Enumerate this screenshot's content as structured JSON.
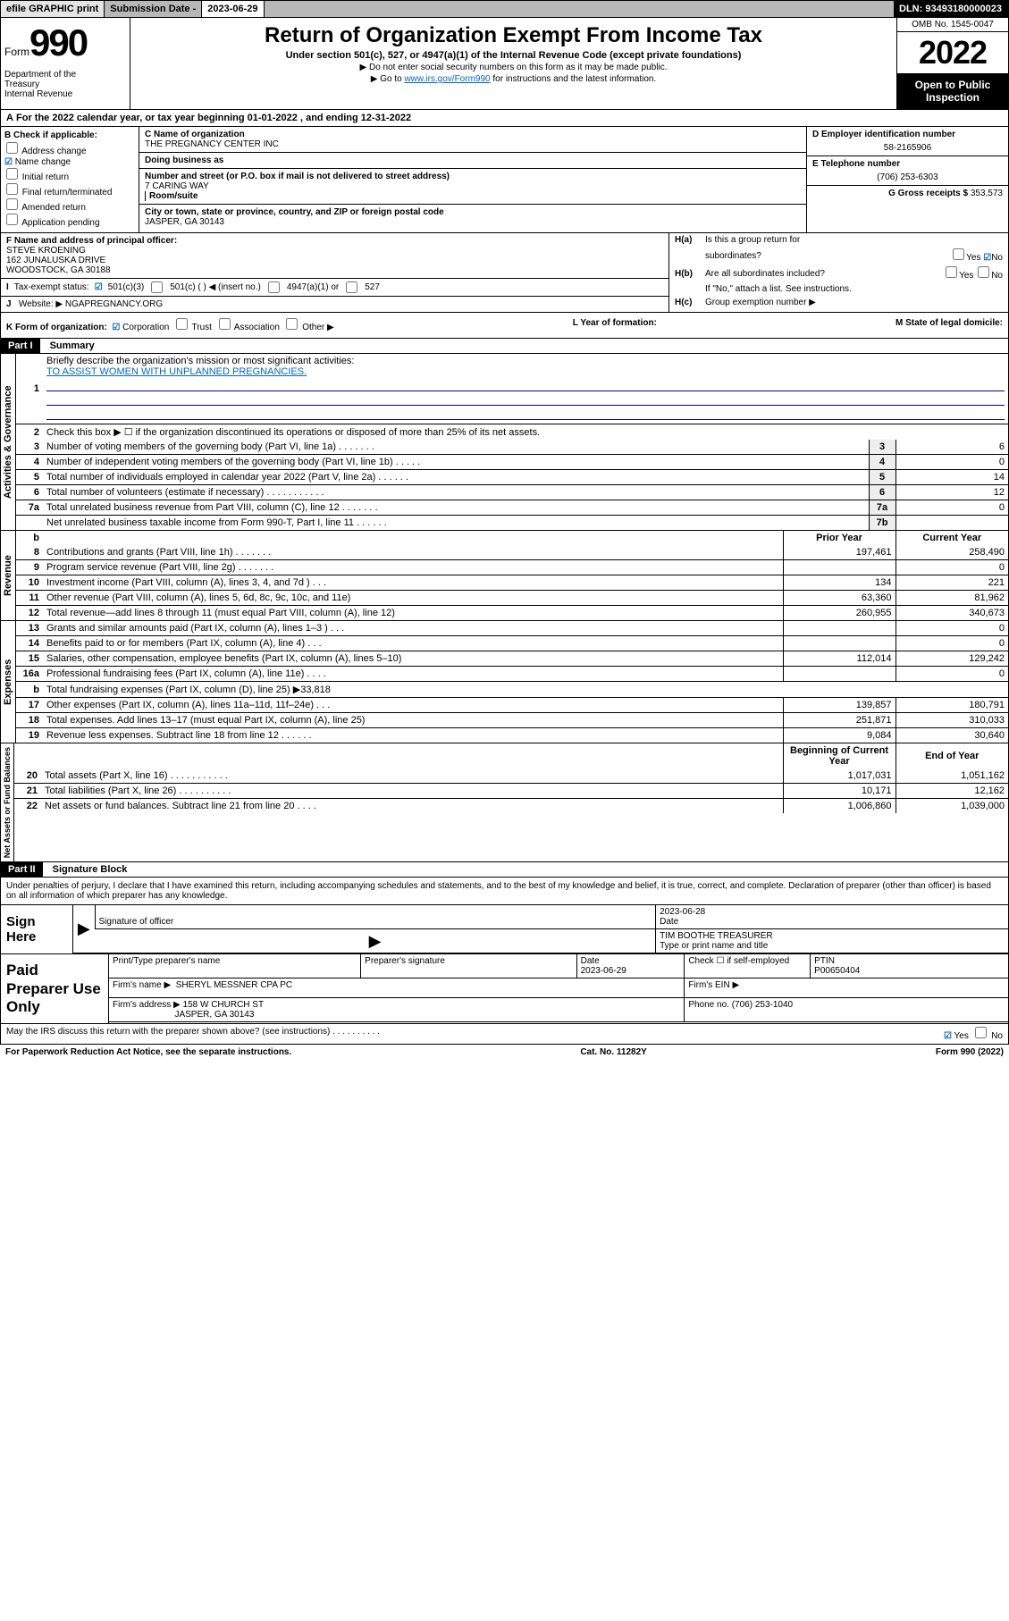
{
  "header": {
    "efile_btn": "efile GRAPHIC print",
    "sub_label": "Submission Date - ",
    "sub_date": "2023-06-29",
    "dln_label": "DLN: ",
    "dln": "93493180000023"
  },
  "title": {
    "form_word": "Form",
    "form_num": "990",
    "dept": "Department of the Treasury\nInternal Revenue Service",
    "main": "Return of Organization Exempt From Income Tax",
    "sub": "Under section 501(c), 527, or 4947(a)(1) of the Internal Revenue Code (except private foundations)",
    "note1": "▶ Do not enter social security numbers on this form as it may be made public.",
    "note2_pre": "▶ Go to ",
    "note2_link": "www.irs.gov/Form990",
    "note2_post": " for instructions and the latest information.",
    "omb": "OMB No. 1545-0047",
    "year": "2022",
    "open": "Open to Public Inspection"
  },
  "row_a": {
    "label": "A",
    "text_pre": "For the 2022 calendar year, or tax year beginning ",
    "begin": "01-01-2022",
    "mid": " , and ending ",
    "end": "12-31-2022"
  },
  "box_b": {
    "hdr": "B Check if applicable:",
    "items": [
      "Address change",
      "Name change",
      "Initial return",
      "Final return/terminated",
      "Amended return",
      "Application pending"
    ],
    "checked": [
      false,
      true,
      false,
      false,
      false,
      false
    ]
  },
  "box_c": {
    "name_lbl": "C Name of organization",
    "name": "THE PREGNANCY CENTER INC",
    "dba_lbl": "Doing business as",
    "addr_lbl": "Number and street (or P.O. box if mail is not delivered to street address)",
    "room_lbl": "Room/suite",
    "addr": "7 CARING WAY",
    "city_lbl": "City or town, state or province, country, and ZIP or foreign postal code",
    "city": "JASPER, GA  30143"
  },
  "box_d": {
    "lbl": "D Employer identification number",
    "val": "58-2165906"
  },
  "box_e": {
    "lbl": "E Telephone number",
    "val": "(706) 253-6303"
  },
  "box_g": {
    "lbl": "G Gross receipts $ ",
    "val": "353,573"
  },
  "box_f": {
    "lbl": "F Name and address of principal officer:",
    "name": "STEVE KROENING",
    "addr1": "162 JUNALUSKA DRIVE",
    "addr2": "WOODSTOCK, GA  30188"
  },
  "box_h": {
    "a_lbl": "Is this a group return for",
    "a_lbl2": "subordinates?",
    "b_lbl": "Are all subordinates included?",
    "note": "If \"No,\" attach a list. See instructions.",
    "c_lbl": "Group exemption number ▶",
    "yes": "Yes",
    "no": "No"
  },
  "box_i": {
    "lbl": "Tax-exempt status:",
    "opts": [
      "501(c)(3)",
      "501(c) (  ) ◀ (insert no.)",
      "4947(a)(1) or",
      "527"
    ]
  },
  "box_j": {
    "lbl": "Website: ▶",
    "val": "NGAPREGNANCY.ORG"
  },
  "box_k": {
    "lbl": "K Form of organization:",
    "opts": [
      "Corporation",
      "Trust",
      "Association",
      "Other ▶"
    ],
    "l_lbl": "L Year of formation:",
    "m_lbl": "M State of legal domicile:"
  },
  "part1": {
    "hdr": "Part I",
    "title": "Summary",
    "q1_lbl": "1",
    "q1": "Briefly describe the organization's mission or most significant activities:",
    "q1_val": "TO ASSIST WOMEN WITH UNPLANNED PREGNANCIES.",
    "q2_lbl": "2",
    "q2": "Check this box ▶ ☐ if the organization discontinued its operations or disposed of more than 25% of its net assets.",
    "vlabels": [
      "Activities & Governance",
      "Revenue",
      "Expenses",
      "Net Assets or Fund Balances"
    ],
    "prior_hdr": "Prior Year",
    "curr_hdr": "Current Year",
    "begin_hdr": "Beginning of Current Year",
    "end_hdr": "End of Year",
    "gov_rows": [
      {
        "n": "3",
        "d": "Number of voting members of the governing body (Part VI, line 1a)  .   .    .    .   .   .   .",
        "k": "3",
        "v": "6"
      },
      {
        "n": "4",
        "d": "Number of independent voting members of the governing body (Part VI, line 1b)  .   .   .   .   .",
        "k": "4",
        "v": "0"
      },
      {
        "n": "5",
        "d": "Total number of individuals employed in calendar year 2022 (Part V, line 2a)  .   .   .   .   .   .",
        "k": "5",
        "v": "14"
      },
      {
        "n": "6",
        "d": "Total number of volunteers (estimate if necessary)  .   .   .   .   .   .   .   .   .   .   .",
        "k": "6",
        "v": "12"
      },
      {
        "n": "7a",
        "d": "Total unrelated business revenue from Part VIII, column (C), line 12  .   .   .   .   .   .   .",
        "k": "7a",
        "v": "0"
      },
      {
        "n": "",
        "d": "Net unrelated business taxable income from Form 990-T, Part I, line 11  .   .   .   .   .   .",
        "k": "7b",
        "v": ""
      }
    ],
    "rev_rows": [
      {
        "n": "8",
        "d": "Contributions and grants (Part VIII, line 1h)  .   .   .   .   .   .   .",
        "p": "197,461",
        "c": "258,490"
      },
      {
        "n": "9",
        "d": "Program service revenue (Part VIII, line 2g)  .   .   .   .   .   .   .",
        "p": "",
        "c": "0"
      },
      {
        "n": "10",
        "d": "Investment income (Part VIII, column (A), lines 3, 4, and 7d )  .   .   .",
        "p": "134",
        "c": "221"
      },
      {
        "n": "11",
        "d": "Other revenue (Part VIII, column (A), lines 5, 6d, 8c, 9c, 10c, and 11e)",
        "p": "63,360",
        "c": "81,962"
      },
      {
        "n": "12",
        "d": "Total revenue—add lines 8 through 11 (must equal Part VIII, column (A), line 12)",
        "p": "260,955",
        "c": "340,673"
      }
    ],
    "exp_rows": [
      {
        "n": "13",
        "d": "Grants and similar amounts paid (Part IX, column (A), lines 1–3 )  .   .   .",
        "p": "",
        "c": "0"
      },
      {
        "n": "14",
        "d": "Benefits paid to or for members (Part IX, column (A), line 4)  .   .   .",
        "p": "",
        "c": "0"
      },
      {
        "n": "15",
        "d": "Salaries, other compensation, employee benefits (Part IX, column (A), lines 5–10)",
        "p": "112,014",
        "c": "129,242"
      },
      {
        "n": "16a",
        "d": "Professional fundraising fees (Part IX, column (A), line 11e)  .   .   .   .",
        "p": "",
        "c": "0"
      },
      {
        "n": "b",
        "d": "Total fundraising expenses (Part IX, column (D), line 25) ▶33,818",
        "p": "@span",
        "c": ""
      },
      {
        "n": "17",
        "d": "Other expenses (Part IX, column (A), lines 11a–11d, 11f–24e)  .   .   .",
        "p": "139,857",
        "c": "180,791"
      },
      {
        "n": "18",
        "d": "Total expenses. Add lines 13–17 (must equal Part IX, column (A), line 25)",
        "p": "251,871",
        "c": "310,033"
      },
      {
        "n": "19",
        "d": "Revenue less expenses. Subtract line 18 from line 12  .   .   .   .   .   .",
        "p": "9,084",
        "c": "30,640"
      }
    ],
    "net_rows": [
      {
        "n": "20",
        "d": "Total assets (Part X, line 16)  .   .   .   .   .   .   .   .   .   .   .",
        "p": "1,017,031",
        "c": "1,051,162"
      },
      {
        "n": "21",
        "d": "Total liabilities (Part X, line 26)  .   .   .   .   .   .   .   .   .   .",
        "p": "10,171",
        "c": "12,162"
      },
      {
        "n": "22",
        "d": "Net assets or fund balances. Subtract line 21 from line 20  .   .   .   .",
        "p": "1,006,860",
        "c": "1,039,000"
      }
    ]
  },
  "part2": {
    "hdr": "Part II",
    "title": "Signature Block",
    "intro": "Under penalties of perjury, I declare that I have examined this return, including accompanying schedules and statements, and to the best of my knowledge and belief, it is true, correct, and complete. Declaration of preparer (other than officer) is based on all information of which preparer has any knowledge.",
    "sign_here": "Sign Here",
    "sig_officer": "Signature of officer",
    "sig_date": "2023-06-28",
    "date_lbl": "Date",
    "officer_name": "TIM BOOTHE TREASURER",
    "officer_lbl": "Type or print name and title",
    "paid": "Paid Preparer Use Only",
    "pt_name_lbl": "Print/Type preparer's name",
    "pt_sig_lbl": "Preparer's signature",
    "pt_date_lbl": "Date",
    "pt_date": "2023-06-29",
    "pt_check_lbl": "Check ☐ if self-employed",
    "ptin_lbl": "PTIN",
    "ptin": "P00650404",
    "firm_name_lbl": "Firm's name    ▶",
    "firm_name": "SHERYL MESSNER CPA PC",
    "firm_ein_lbl": "Firm's EIN ▶",
    "firm_addr_lbl": "Firm's address ▶",
    "firm_addr1": "158 W CHURCH ST",
    "firm_addr2": "JASPER, GA  30143",
    "firm_phone_lbl": "Phone no. ",
    "firm_phone": "(706) 253-1040",
    "discuss": "May the IRS discuss this return with the preparer shown above? (see instructions)  .   .   .   .   .   .   .   .   .   .",
    "paperwork": "For Paperwork Reduction Act Notice, see the separate instructions.",
    "cat": "Cat. No. 11282Y",
    "form_foot": "Form 990 (2022)"
  }
}
